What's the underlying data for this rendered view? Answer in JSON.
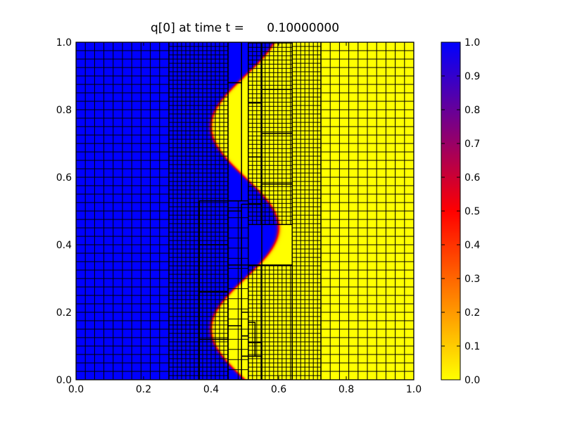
{
  "chart_data": {
    "type": "heatmap",
    "title": "q[0] at time t =      0.10000000",
    "xlim": [
      0.0,
      1.0
    ],
    "ylim": [
      0.0,
      1.0
    ],
    "x_ticks": [
      "0.0",
      "0.2",
      "0.4",
      "0.6",
      "0.8",
      "1.0"
    ],
    "y_ticks": [
      "0.0",
      "0.2",
      "0.4",
      "0.6",
      "0.8",
      "1.0"
    ],
    "colorbar": {
      "range": [
        0.0,
        1.0
      ],
      "ticks": [
        "0.0",
        "0.1",
        "0.2",
        "0.3",
        "0.4",
        "0.5",
        "0.6",
        "0.7",
        "0.8",
        "0.9",
        "1.0"
      ],
      "colors": [
        "#ffff00",
        "#ff0000",
        "#0000ff"
      ]
    },
    "field": {
      "low_value": 0.0,
      "high_value": 1.0,
      "interface": {
        "center_x": 0.5,
        "amplitude": 0.1,
        "wavelength_y": 0.6,
        "phase_at_y0": "crossing"
      }
    },
    "amr_patches": [
      {
        "x": [
          0.0,
          0.275
        ],
        "y": [
          0.0,
          1.0
        ],
        "dx": 0.0275,
        "dy": 0.025
      },
      {
        "x": [
          0.275,
          0.45
        ],
        "y": [
          0.0,
          1.0
        ],
        "dx": 0.0125,
        "dy": 0.0125
      },
      {
        "x": [
          0.64,
          0.725
        ],
        "y": [
          0.0,
          1.0
        ],
        "dx": 0.0125,
        "dy": 0.0125
      },
      {
        "x": [
          0.725,
          1.0
        ],
        "y": [
          0.0,
          1.0
        ],
        "dx": 0.0275,
        "dy": 0.025
      },
      {
        "x": [
          0.45,
          0.51
        ],
        "y": [
          0.0,
          0.53
        ],
        "dx": 0.03,
        "dy": 0.03
      },
      {
        "x": [
          0.51,
          0.64
        ],
        "y": [
          0.0,
          0.34
        ],
        "dx": 0.0125,
        "dy": 0.0125
      },
      {
        "x": [
          0.51,
          0.64
        ],
        "y": [
          0.46,
          1.0
        ],
        "dx": 0.0125,
        "dy": 0.0125
      }
    ],
    "coarse_blocks": [
      {
        "x": [
          0.365,
          0.45
        ],
        "y": [
          0.0,
          0.12
        ]
      },
      {
        "x": [
          0.365,
          0.45
        ],
        "y": [
          0.12,
          0.26
        ]
      },
      {
        "x": [
          0.365,
          0.45
        ],
        "y": [
          0.26,
          0.4
        ]
      },
      {
        "x": [
          0.365,
          0.45
        ],
        "y": [
          0.4,
          0.53
        ]
      },
      {
        "x": [
          0.45,
          0.49
        ],
        "y": [
          0.0,
          0.16
        ]
      },
      {
        "x": [
          0.45,
          0.49
        ],
        "y": [
          0.16,
          0.34
        ]
      },
      {
        "x": [
          0.45,
          0.49
        ],
        "y": [
          0.34,
          0.5
        ]
      },
      {
        "x": [
          0.49,
          0.51
        ],
        "y": [
          0.0,
          0.07
        ]
      },
      {
        "x": [
          0.49,
          0.51
        ],
        "y": [
          0.07,
          0.13
        ]
      },
      {
        "x": [
          0.49,
          0.51
        ],
        "y": [
          0.13,
          0.2
        ]
      },
      {
        "x": [
          0.51,
          0.55
        ],
        "y": [
          0.0,
          0.07
        ]
      },
      {
        "x": [
          0.51,
          0.53
        ],
        "y": [
          0.07,
          0.11
        ]
      },
      {
        "x": [
          0.53,
          0.55
        ],
        "y": [
          0.07,
          0.11
        ]
      },
      {
        "x": [
          0.51,
          0.53
        ],
        "y": [
          0.11,
          0.17
        ]
      },
      {
        "x": [
          0.55,
          0.64
        ],
        "y": [
          0.0,
          0.34
        ]
      },
      {
        "x": [
          0.49,
          0.55
        ],
        "y": [
          0.34,
          0.52
        ]
      },
      {
        "x": [
          0.51,
          0.55
        ],
        "y": [
          0.52,
          0.66
        ]
      },
      {
        "x": [
          0.51,
          0.55
        ],
        "y": [
          0.66,
          0.82
        ]
      },
      {
        "x": [
          0.51,
          0.55
        ],
        "y": [
          0.82,
          1.0
        ]
      },
      {
        "x": [
          0.55,
          0.64
        ],
        "y": [
          0.46,
          0.58
        ]
      },
      {
        "x": [
          0.55,
          0.64
        ],
        "y": [
          0.58,
          0.73
        ]
      },
      {
        "x": [
          0.55,
          0.64
        ],
        "y": [
          0.73,
          0.86
        ]
      },
      {
        "x": [
          0.55,
          0.64
        ],
        "y": [
          0.86,
          1.0
        ]
      },
      {
        "x": [
          0.45,
          0.49
        ],
        "y": [
          0.53,
          0.88
        ]
      },
      {
        "x": [
          0.45,
          0.49
        ],
        "y": [
          0.88,
          1.0
        ]
      }
    ]
  }
}
